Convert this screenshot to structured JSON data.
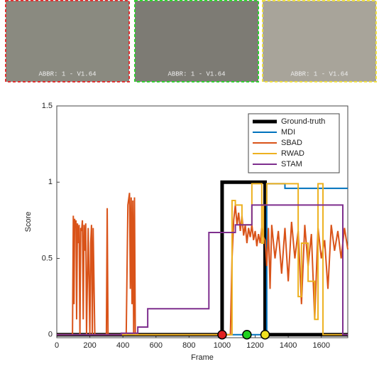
{
  "chart_data": {
    "type": "line",
    "thumbnails": [
      {
        "caption": "ABBR: 1 - V1.64",
        "color": "#e03030"
      },
      {
        "caption": "ABBR: 1 - V1.64",
        "color": "#30d030"
      },
      {
        "caption": "ABBR: 1 - V1.64",
        "color": "#f0e040"
      }
    ],
    "x_label": "Frame",
    "y_label": "Score",
    "xlim": [
      0,
      1760
    ],
    "ylim": [
      -0.02,
      1.5
    ],
    "xticks": [
      0,
      200,
      400,
      600,
      800,
      1000,
      1200,
      1400,
      1600
    ],
    "yticks": [
      0,
      0.5,
      1,
      1.5
    ],
    "legend": "upper right",
    "series": [
      {
        "name": "Ground-truth",
        "color": "#000000",
        "width": 5,
        "x": [
          0,
          1000,
          1000,
          1260,
          1260,
          1760
        ],
        "values": [
          0,
          0,
          1,
          1,
          0,
          0
        ]
      },
      {
        "name": "MDI",
        "color": "#0072bd",
        "width": 2,
        "x": [
          0,
          1270,
          1270,
          1380,
          1380,
          1760
        ],
        "values": [
          0,
          0,
          0.99,
          0.99,
          0.96,
          0.96
        ]
      },
      {
        "name": "SBAD",
        "color": "#d95319",
        "width": 2,
        "x": [
          0,
          95,
          100,
          104,
          108,
          112,
          116,
          120,
          125,
          130,
          135,
          140,
          145,
          150,
          155,
          160,
          165,
          170,
          175,
          180,
          190,
          200,
          205,
          210,
          215,
          220,
          225,
          230,
          240,
          300,
          305,
          310,
          315,
          320,
          420,
          430,
          440,
          445,
          450,
          455,
          460,
          465,
          470,
          475,
          480,
          1050,
          1060,
          1070,
          1080,
          1090,
          1100,
          1110,
          1120,
          1130,
          1140,
          1150,
          1160,
          1170,
          1180,
          1190,
          1200,
          1210,
          1220,
          1230,
          1240,
          1250,
          1260,
          1270,
          1280,
          1290,
          1300,
          1320,
          1340,
          1360,
          1380,
          1400,
          1420,
          1440,
          1460,
          1480,
          1500,
          1520,
          1540,
          1560,
          1580,
          1600,
          1620,
          1640,
          1660,
          1680,
          1700,
          1720,
          1740,
          1760
        ],
        "values": [
          0,
          0,
          0.78,
          0.2,
          0.76,
          0.7,
          0.75,
          0.1,
          0.73,
          0.6,
          0.72,
          0,
          0.7,
          0.68,
          0.75,
          0.1,
          0.72,
          0.55,
          0.73,
          0,
          0.7,
          0,
          0.6,
          0.72,
          0,
          0.7,
          0.35,
          0,
          0,
          0,
          0.83,
          0,
          0,
          0,
          0,
          0.85,
          0.93,
          0.3,
          0.9,
          0.2,
          0.88,
          0,
          0.9,
          0,
          0,
          0,
          0.5,
          0.75,
          0.85,
          0.72,
          0.8,
          0.68,
          0.78,
          0.65,
          0.72,
          0.6,
          0.7,
          0.64,
          0.72,
          0.62,
          0.68,
          0.58,
          0.66,
          0.6,
          0.7,
          0.64,
          0.62,
          0.45,
          0.7,
          0.3,
          0.72,
          0.5,
          0.68,
          0.4,
          0.7,
          0.35,
          0.74,
          0.5,
          0.68,
          0.2,
          0.72,
          0.45,
          0.66,
          0.1,
          0.7,
          0.5,
          0.62,
          0.3,
          0.72,
          0.55,
          0.68,
          0.5,
          0.7,
          0.56
        ]
      },
      {
        "name": "RWAD",
        "color": "#edb120",
        "width": 2,
        "x": [
          0,
          1060,
          1060,
          1080,
          1080,
          1120,
          1120,
          1180,
          1180,
          1240,
          1240,
          1250,
          1250,
          1270,
          1270,
          1460,
          1460,
          1480,
          1480,
          1520,
          1520,
          1560,
          1560,
          1580,
          1580,
          1610,
          1610,
          1760
        ],
        "values": [
          0,
          0,
          0.88,
          0.88,
          0.85,
          0.85,
          0.72,
          0.72,
          0.99,
          0.99,
          0.6,
          0.6,
          0.85,
          0.85,
          0.99,
          0.99,
          0.25,
          0.25,
          0.6,
          0.6,
          0.35,
          0.35,
          0.1,
          0.1,
          0.99,
          0.99,
          0,
          0
        ]
      },
      {
        "name": "STAM",
        "color": "#7e2f8e",
        "width": 2,
        "x": [
          0,
          390,
          390,
          490,
          490,
          550,
          550,
          920,
          920,
          1080,
          1080,
          1180,
          1180,
          1730,
          1730,
          1760
        ],
        "values": [
          0,
          0,
          0.01,
          0.01,
          0.05,
          0.05,
          0.17,
          0.17,
          0.67,
          0.67,
          0.72,
          0.72,
          0.85,
          0.85,
          0,
          0
        ]
      }
    ],
    "markers": [
      {
        "x": 1000,
        "y": 0,
        "color": "#e02020"
      },
      {
        "x": 1150,
        "y": 0,
        "color": "#20d020"
      },
      {
        "x": 1260,
        "y": 0,
        "color": "#f0e020"
      }
    ]
  }
}
